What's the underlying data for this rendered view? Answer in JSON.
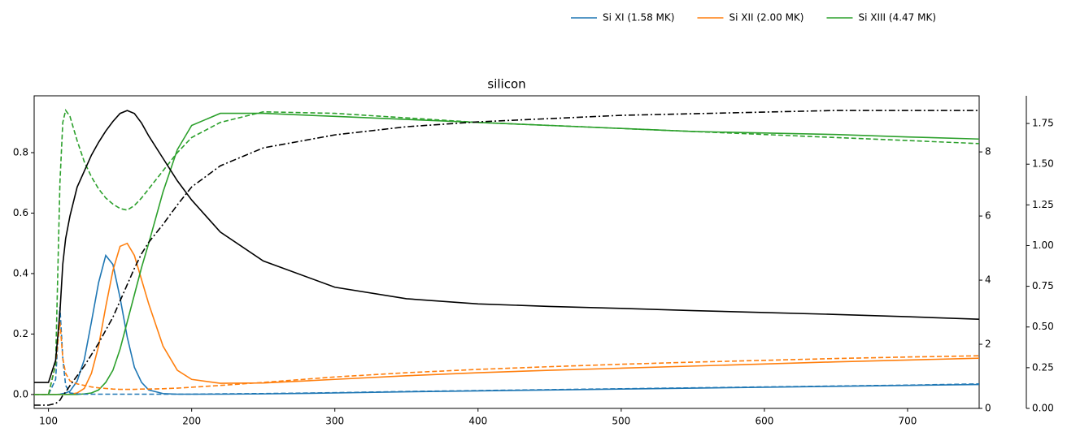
{
  "chart_data": {
    "type": "line",
    "title": "silicon",
    "x": [
      90,
      100,
      105,
      108,
      110,
      112,
      115,
      120,
      125,
      130,
      135,
      140,
      145,
      150,
      155,
      160,
      165,
      170,
      180,
      190,
      200,
      220,
      250,
      300,
      350,
      400,
      450,
      500,
      550,
      600,
      650,
      700,
      750
    ],
    "xlim": [
      90,
      750
    ],
    "xticks": [
      100,
      200,
      300,
      400,
      500,
      600,
      700
    ],
    "ylim": [
      -0.046,
      0.988
    ],
    "yticks": [
      {
        "value": 0,
        "label": "0.0"
      },
      {
        "value": 0.2,
        "label": "0.2"
      },
      {
        "value": 0.4,
        "label": "0.4"
      },
      {
        "value": 0.6,
        "label": "0.6"
      },
      {
        "value": 0.8,
        "label": "0.8"
      }
    ],
    "y2lim": [
      0,
      9.75
    ],
    "y2ticks": [
      0,
      2,
      4,
      6,
      8
    ],
    "y3lim": [
      0,
      1.92
    ],
    "y3ticks": [
      {
        "value": 0,
        "label": "0.00"
      },
      {
        "value": 0.25,
        "label": "0.25"
      },
      {
        "value": 0.5,
        "label": "0.50"
      },
      {
        "value": 0.75,
        "label": "0.75"
      },
      {
        "value": 1,
        "label": "1.00"
      },
      {
        "value": 1.25,
        "label": "1.25"
      },
      {
        "value": 1.5,
        "label": "1.50"
      },
      {
        "value": 1.75,
        "label": "1.75"
      }
    ],
    "legend": "upper right",
    "series": [
      {
        "name": "Si XI (1.58 MK)",
        "color": "#1f77b4",
        "style": "solid",
        "values": [
          0,
          0,
          0,
          0.001,
          0.003,
          0.005,
          0.011,
          0.044,
          0.115,
          0.24,
          0.37,
          0.46,
          0.43,
          0.32,
          0.19,
          0.09,
          0.04,
          0.015,
          0.003,
          0.001,
          0.001,
          0.001,
          0.002,
          0.005,
          0.009,
          0.012,
          0.015,
          0.018,
          0.021,
          0.024,
          0.027,
          0.03,
          0.033
        ]
      },
      {
        "name": "Si XII (2.00 MK)",
        "color": "#ff7f0e",
        "style": "solid",
        "values": [
          0,
          0,
          0,
          0,
          0,
          0,
          0.001,
          0.005,
          0.02,
          0.07,
          0.16,
          0.29,
          0.41,
          0.49,
          0.5,
          0.46,
          0.38,
          0.3,
          0.16,
          0.08,
          0.05,
          0.037,
          0.038,
          0.05,
          0.062,
          0.072,
          0.08,
          0.087,
          0.094,
          0.101,
          0.108,
          0.114,
          0.12
        ]
      },
      {
        "name": "Si XIII (4.47 MK)",
        "color": "#2ca02c",
        "style": "solid",
        "values": [
          0,
          0,
          0,
          0,
          0,
          0,
          0,
          0,
          0.002,
          0.005,
          0.015,
          0.04,
          0.08,
          0.15,
          0.24,
          0.33,
          0.42,
          0.5,
          0.67,
          0.81,
          0.89,
          0.93,
          0.93,
          0.92,
          0.91,
          0.9,
          0.89,
          0.88,
          0.87,
          0.865,
          0.86,
          0.852,
          0.845
        ]
      },
      {
        "color": "#1f77b4",
        "style": "dashed",
        "values": [
          0,
          0,
          0.05,
          0.29,
          0.12,
          0.03,
          0.005,
          0.002,
          0.001,
          0.001,
          0.001,
          0.001,
          0.001,
          0.001,
          0.001,
          0.001,
          0.001,
          0.001,
          0.001,
          0.001,
          0.001,
          0.002,
          0.003,
          0.006,
          0.01,
          0.013,
          0.016,
          0.019,
          0.022,
          0.025,
          0.028,
          0.031,
          0.035
        ]
      },
      {
        "color": "#ff7f0e",
        "style": "dashed",
        "values": [
          0,
          0,
          0.1,
          0.24,
          0.12,
          0.07,
          0.045,
          0.035,
          0.03,
          0.025,
          0.022,
          0.02,
          0.018,
          0.017,
          0.017,
          0.017,
          0.018,
          0.018,
          0.019,
          0.021,
          0.024,
          0.03,
          0.04,
          0.058,
          0.072,
          0.083,
          0.092,
          0.1,
          0.107,
          0.113,
          0.119,
          0.124,
          0.128
        ]
      },
      {
        "color": "#2ca02c",
        "style": "dashed",
        "values": [
          0,
          0,
          0.1,
          0.7,
          0.9,
          0.94,
          0.92,
          0.84,
          0.77,
          0.72,
          0.68,
          0.65,
          0.63,
          0.615,
          0.61,
          0.625,
          0.65,
          0.68,
          0.74,
          0.8,
          0.85,
          0.9,
          0.935,
          0.93,
          0.915,
          0.9,
          0.89,
          0.88,
          0.87,
          0.86,
          0.85,
          0.84,
          0.83
        ]
      },
      {
        "color": "#000000",
        "style": "solid",
        "axis": "y2",
        "values": [
          0.81,
          0.81,
          1.5,
          3.0,
          4.5,
          5.3,
          6.0,
          6.9,
          7.4,
          7.9,
          8.3,
          8.65,
          8.95,
          9.2,
          9.29,
          9.2,
          8.9,
          8.5,
          7.8,
          7.1,
          6.5,
          5.5,
          4.6,
          3.78,
          3.42,
          3.26,
          3.18,
          3.12,
          3.05,
          2.99,
          2.93,
          2.86,
          2.78
        ]
      },
      {
        "color": "#000000",
        "style": "dashdot",
        "axis": "y3",
        "values": [
          0.02,
          0.02,
          0.03,
          0.05,
          0.08,
          0.1,
          0.14,
          0.2,
          0.26,
          0.33,
          0.4,
          0.48,
          0.56,
          0.66,
          0.76,
          0.86,
          0.95,
          1.02,
          1.13,
          1.25,
          1.36,
          1.49,
          1.6,
          1.68,
          1.73,
          1.76,
          1.78,
          1.8,
          1.81,
          1.82,
          1.83,
          1.83,
          1.83
        ]
      }
    ]
  }
}
